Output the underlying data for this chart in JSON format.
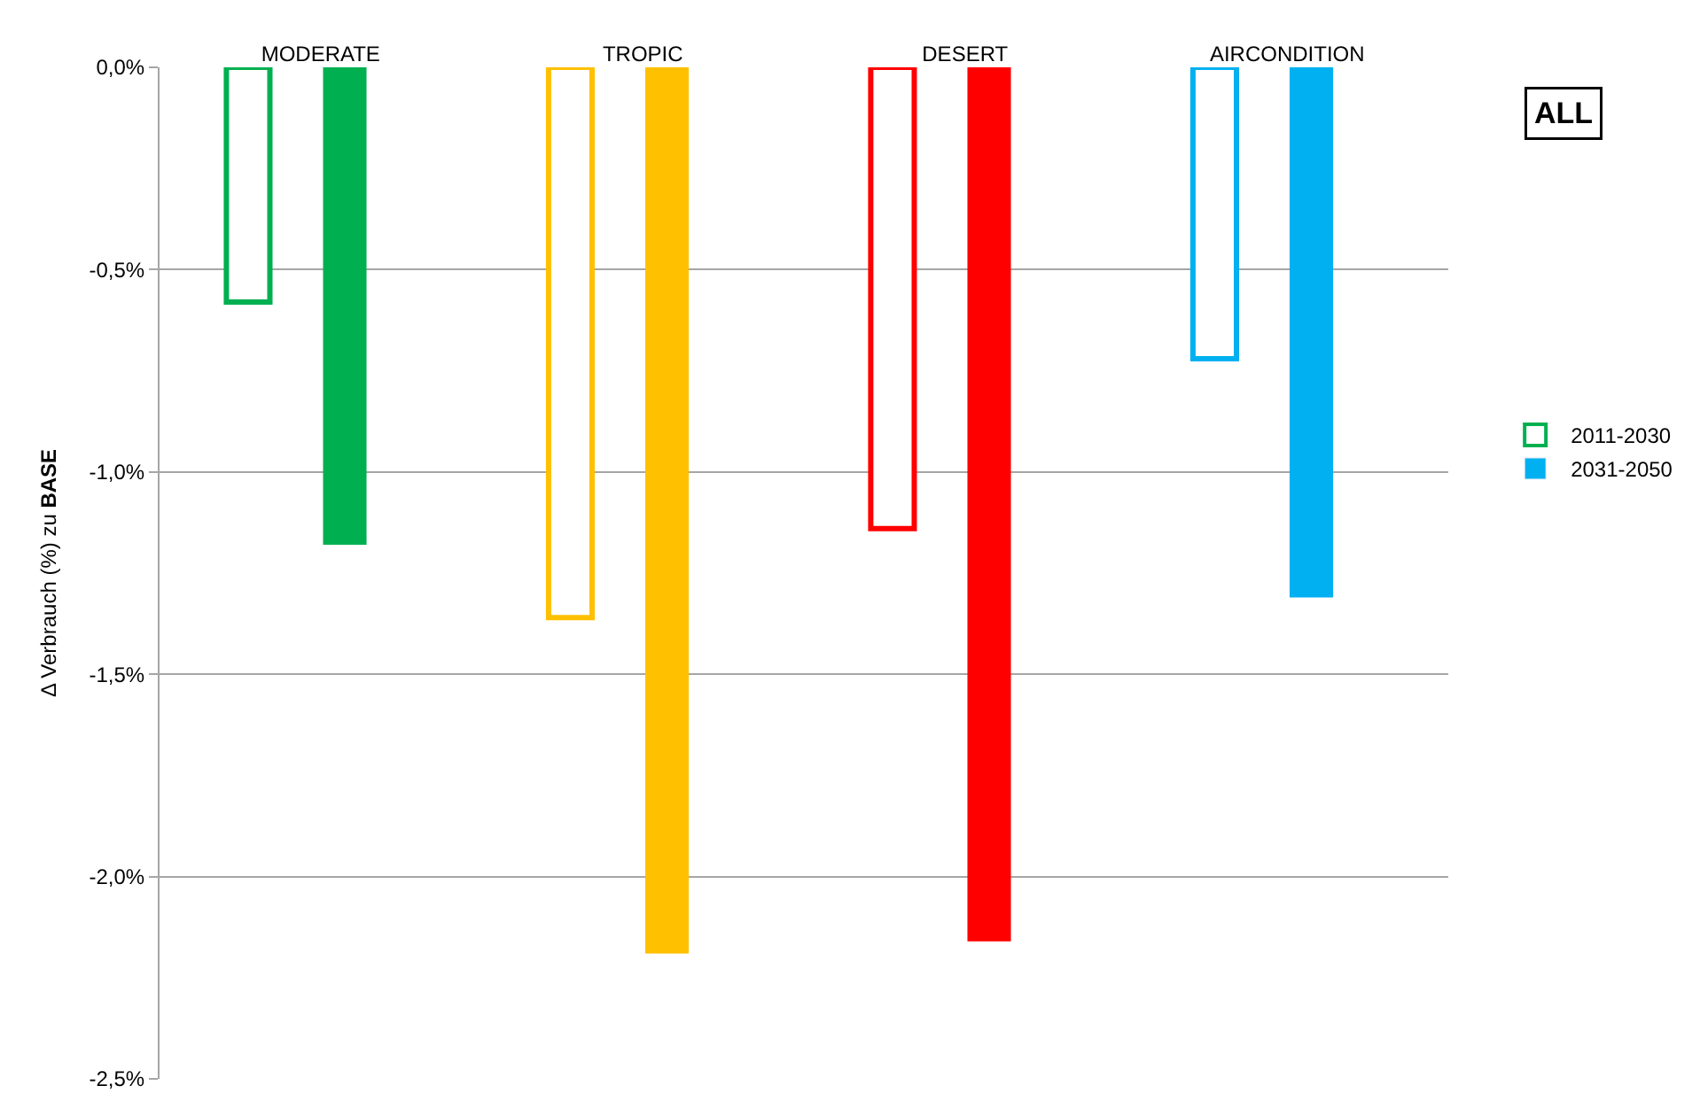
{
  "chart_data": {
    "type": "bar",
    "ylabel": "Δ Verbrauch (%) zu BASE",
    "categories": [
      "MODERATE",
      "TROPIC",
      "DESERT",
      "AIRCONDITION"
    ],
    "series": [
      {
        "name": "2011-2030",
        "color": "#00b050",
        "colors": [
          "#00b050",
          "#ffc000",
          "#ff0000",
          "#00b0f0"
        ],
        "values": [
          -0.58,
          -1.36,
          -1.14,
          -0.72
        ]
      },
      {
        "name": "2031-2050",
        "color": "#00b0f0",
        "colors": [
          "#00b050",
          "#ffc000",
          "#ff0000",
          "#00b0f0"
        ],
        "values": [
          -1.18,
          -2.19,
          -2.16,
          -1.31
        ]
      }
    ],
    "ylim": [
      -2.5,
      0
    ],
    "yticks": [
      {
        "value": 0,
        "label": "0,0%"
      },
      {
        "value": -0.5,
        "label": "-0,5%"
      },
      {
        "value": -1,
        "label": "-1,0%"
      },
      {
        "value": -1.5,
        "label": "-1,5%"
      },
      {
        "value": -2,
        "label": "-2,0%"
      },
      {
        "value": -2.5,
        "label": "-2,5%"
      }
    ],
    "grid": "y",
    "legend": "right",
    "annotations": [
      "ALL"
    ]
  }
}
